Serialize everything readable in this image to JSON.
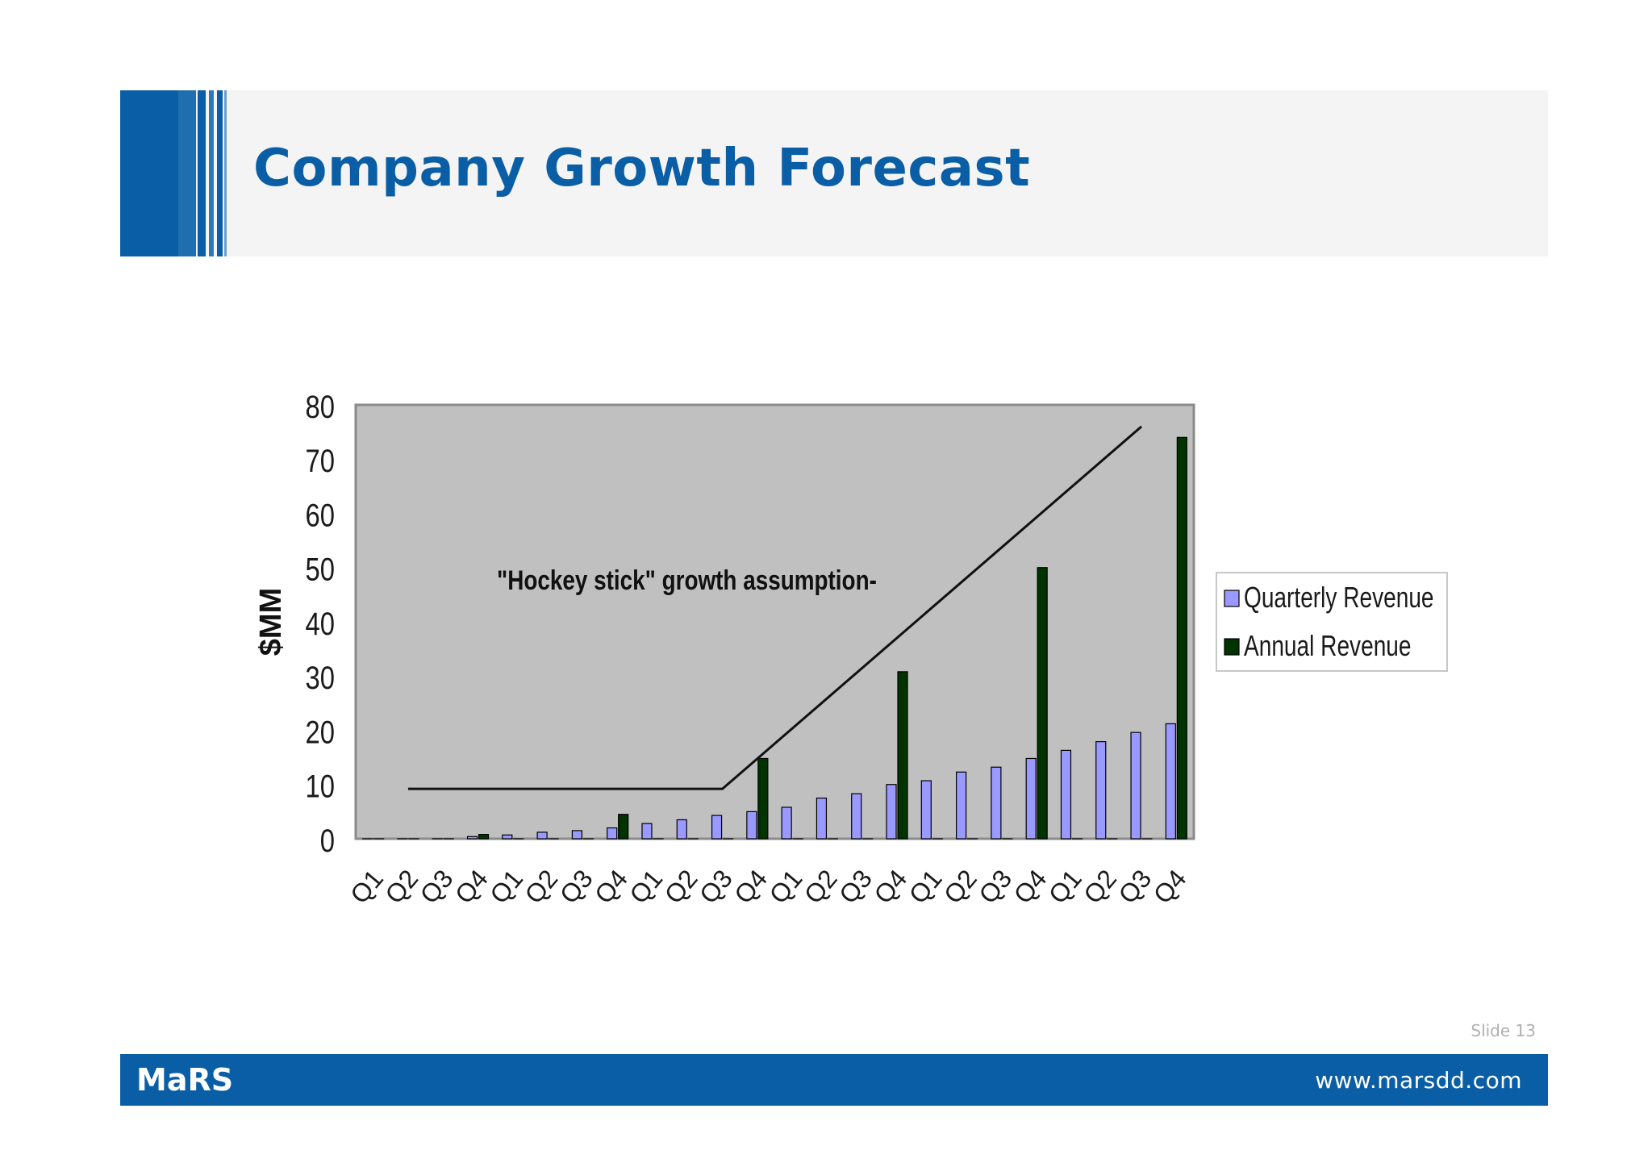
{
  "slide": {
    "title": "Company Growth Forecast",
    "slide_number": "Slide 13",
    "footer_brand": "MaRS",
    "footer_url": "www.marsdd.com",
    "colors": {
      "brand_blue": "#0a5ea6",
      "plot_background": "#c0c0c0",
      "quarterly_bar": "#9999ff",
      "annual_bar": "#003300"
    }
  },
  "chart_data": {
    "type": "bar",
    "categories": [
      "Q1",
      "Q2",
      "Q3",
      "Q4",
      "Q1",
      "Q2",
      "Q3",
      "Q4",
      "Q1",
      "Q2",
      "Q3",
      "Q4",
      "Q1",
      "Q2",
      "Q3",
      "Q4",
      "Q1",
      "Q2",
      "Q3",
      "Q4",
      "Q1",
      "Q2",
      "Q3",
      "Q4"
    ],
    "series": [
      {
        "name": "Quarterly Revenue",
        "values": [
          0,
          0,
          0,
          0.4,
          0.7,
          1.2,
          1.5,
          2,
          2.8,
          3.5,
          4.3,
          5,
          5.8,
          7.5,
          8.3,
          10,
          10.7,
          12.3,
          13.2,
          14.8,
          16.3,
          17.9,
          19.6,
          21.2
        ]
      },
      {
        "name": "Annual Revenue",
        "values": [
          0,
          0,
          0,
          0.8,
          0,
          0,
          0,
          4.5,
          0,
          0,
          0,
          14.8,
          0,
          0,
          0,
          30.8,
          0,
          0,
          0,
          50,
          0,
          0,
          0,
          74
        ]
      }
    ],
    "ylabel": "$MM",
    "xlabel": "",
    "ylim": [
      0,
      80
    ],
    "yticks": [
      "0",
      "10",
      "20",
      "30",
      "40",
      "50",
      "60",
      "70",
      "80"
    ],
    "legend_position": "right",
    "grid": false,
    "annotation": {
      "text": "\"Hockey stick\" growth assumption-",
      "trend_line": [
        [
          1,
          9.2
        ],
        [
          10,
          9.2
        ],
        [
          22,
          76
        ]
      ]
    }
  }
}
